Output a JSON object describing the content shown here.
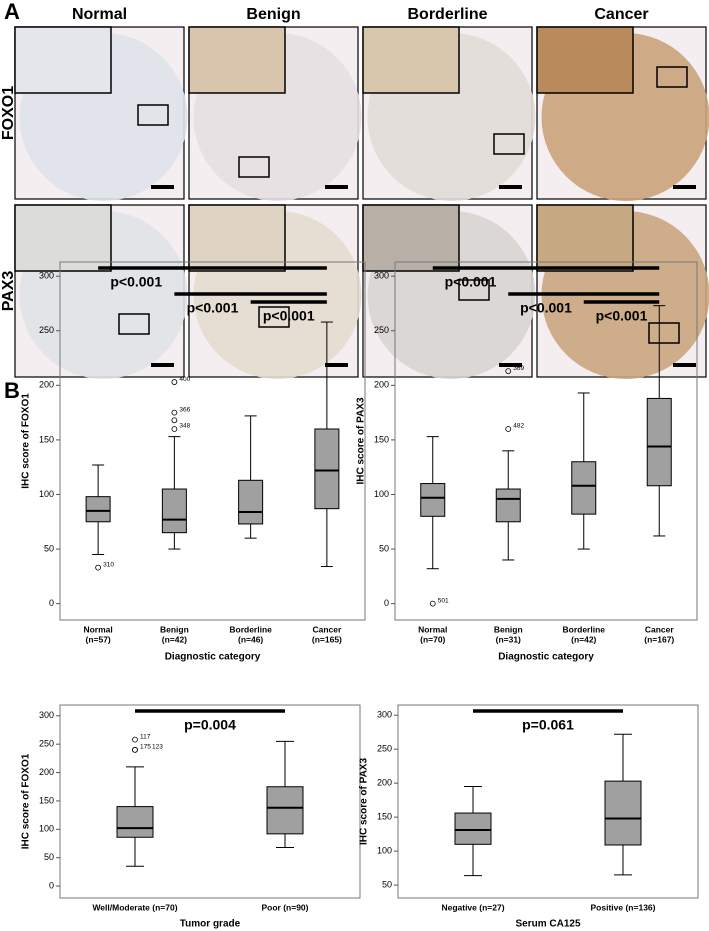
{
  "panel_a": {
    "label": "A",
    "columns": [
      "Normal",
      "Benign",
      "Borderline",
      "Cancer"
    ],
    "rows": [
      "FOXO1",
      "PAX3"
    ]
  },
  "panel_b": {
    "label": "B"
  },
  "chart_data": [
    {
      "type": "box",
      "ylabel": "IHC score of FOXO1",
      "xlabel": "Diagnostic category",
      "categories": [
        "Normal",
        "Benign",
        "Borderline",
        "Cancer"
      ],
      "counts": [
        "(n=57)",
        "(n=42)",
        "(n=46)",
        "(n=165)"
      ],
      "boxes": [
        {
          "min": 45,
          "q1": 75,
          "median": 85,
          "q3": 98,
          "max": 127,
          "outliers": [
            {
              "value": 33,
              "label": "310"
            }
          ]
        },
        {
          "min": 50,
          "q1": 65,
          "median": 77,
          "q3": 105,
          "max": 153,
          "outliers": [
            {
              "value": 203,
              "label": "400"
            },
            {
              "value": 175,
              "label": "366"
            },
            {
              "value": 168
            },
            {
              "value": 160,
              "label": "348"
            }
          ]
        },
        {
          "min": 60,
          "q1": 73,
          "median": 84,
          "q3": 113,
          "max": 172,
          "outliers": []
        },
        {
          "min": 34,
          "q1": 87,
          "median": 122,
          "q3": 160,
          "max": 258,
          "outliers": []
        }
      ],
      "significance": [
        {
          "from": "Normal",
          "to": "Cancer",
          "label": "p<0.001"
        },
        {
          "from": "Benign",
          "to": "Cancer",
          "label": "p<0.001"
        },
        {
          "from": "Borderline",
          "to": "Cancer",
          "label": "p<0.001"
        }
      ],
      "color": "#a0a0a0",
      "ylim": [
        -15,
        313
      ],
      "yticks": [
        0,
        50,
        100,
        150,
        200,
        250,
        300
      ]
    },
    {
      "type": "box",
      "ylabel": "IHC score of PAX3",
      "xlabel": "Diagnostic category",
      "categories": [
        "Normal",
        "Benign",
        "Borderline",
        "Cancer"
      ],
      "counts": [
        "(n=70)",
        "(n=31)",
        "(n=42)",
        "(n=167)"
      ],
      "boxes": [
        {
          "min": 32,
          "q1": 80,
          "median": 97,
          "q3": 110,
          "max": 153,
          "outliers": [
            {
              "value": 0,
              "label": "501"
            }
          ]
        },
        {
          "min": 40,
          "q1": 75,
          "median": 96,
          "q3": 105,
          "max": 140,
          "outliers": [
            {
              "value": 213,
              "label": "369"
            },
            {
              "value": 160,
              "label": "482"
            }
          ]
        },
        {
          "min": 50,
          "q1": 82,
          "median": 108,
          "q3": 130,
          "max": 193,
          "outliers": []
        },
        {
          "min": 62,
          "q1": 108,
          "median": 144,
          "q3": 188,
          "max": 273,
          "outliers": []
        }
      ],
      "significance": [
        {
          "from": "Normal",
          "to": "Cancer",
          "label": "p<0.001"
        },
        {
          "from": "Benign",
          "to": "Cancer",
          "label": "p<0.001"
        },
        {
          "from": "Borderline",
          "to": "Cancer",
          "label": "p<0.001"
        }
      ],
      "color": "#a0a0a0",
      "ylim": [
        -15,
        313
      ],
      "yticks": [
        0,
        50,
        100,
        150,
        200,
        250,
        300
      ]
    },
    {
      "type": "box",
      "ylabel": "IHC score of FOXO1",
      "xlabel": "Tumor grade",
      "categories": [
        "Well/Moderate (n=70)",
        "Poor (n=90)"
      ],
      "boxes": [
        {
          "min": 35,
          "q1": 86,
          "median": 102,
          "q3": 140,
          "max": 210,
          "outliers": [
            {
              "value": 258,
              "label": "117"
            },
            {
              "value": 240,
              "label": "175"
            },
            {
              "value": 240,
              "label": "123"
            }
          ]
        },
        {
          "min": 68,
          "q1": 92,
          "median": 138,
          "q3": 175,
          "max": 255,
          "outliers": []
        }
      ],
      "significance": [
        {
          "from": "Well/Moderate (n=70)",
          "to": "Poor (n=90)",
          "label": "p=0.004"
        }
      ],
      "color": "#a0a0a0",
      "ylim": [
        -21,
        319
      ],
      "yticks": [
        0,
        50,
        100,
        150,
        200,
        250,
        300
      ]
    },
    {
      "type": "box",
      "ylabel": "IHC score of PAX3",
      "xlabel": "Serum CA125",
      "categories": [
        "Negative (n=27)",
        "Positive (n=136)"
      ],
      "boxes": [
        {
          "min": 64,
          "q1": 110,
          "median": 131,
          "q3": 156,
          "max": 195,
          "outliers": []
        },
        {
          "min": 65,
          "q1": 109,
          "median": 148,
          "q3": 203,
          "max": 272,
          "outliers": []
        }
      ],
      "significance": [
        {
          "from": "Negative (n=27)",
          "to": "Positive (n=136)",
          "label": "p=0.061"
        }
      ],
      "color": "#a0a0a0",
      "ylim": [
        31,
        315
      ],
      "yticks": [
        50,
        100,
        150,
        200,
        250,
        300
      ]
    }
  ]
}
